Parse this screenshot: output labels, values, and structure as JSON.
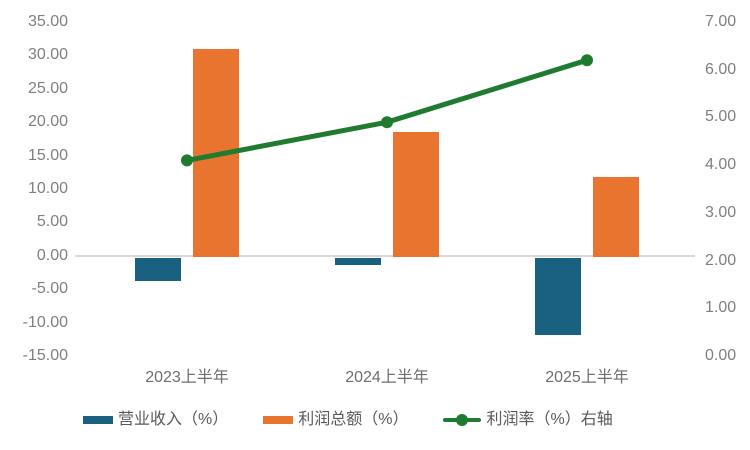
{
  "chart_data": {
    "type": "combo",
    "title": "",
    "categories": [
      "2023上半年",
      "2024上半年",
      "2025上半年"
    ],
    "series": [
      {
        "name": "营业收入（%）",
        "chart_type": "bar",
        "axis": "left",
        "color": "#1A6080",
        "values": [
          -3.8,
          -1.4,
          -11.9
        ]
      },
      {
        "name": "利润总额（%）",
        "chart_type": "bar",
        "axis": "left",
        "color": "#E8742F",
        "values": [
          30.9,
          18.5,
          11.8
        ]
      },
      {
        "name": "利润率（%）右轴",
        "chart_type": "line",
        "axis": "right",
        "color": "#1E7B30",
        "values": [
          4.1,
          4.9,
          6.2
        ]
      }
    ],
    "left_axis": {
      "min": -15,
      "max": 35,
      "step": 5,
      "ticks": [
        "35.00",
        "30.00",
        "25.00",
        "20.00",
        "15.00",
        "10.00",
        "5.00",
        "0.00",
        "-5.00",
        "-10.00",
        "-15.00"
      ]
    },
    "right_axis": {
      "min": 0,
      "max": 7,
      "step": 1,
      "ticks": [
        "7.00",
        "6.00",
        "5.00",
        "4.00",
        "3.00",
        "2.00",
        "1.00",
        "0.00"
      ]
    },
    "grid": "zero-baseline-only",
    "legend_position": "bottom",
    "colors": {
      "background": "#FFFFFF",
      "gridline": "#D9D9D9",
      "tick_text": "#7F7F7F",
      "category_text": "#6E6E6E",
      "legend_text": "#595959"
    }
  }
}
